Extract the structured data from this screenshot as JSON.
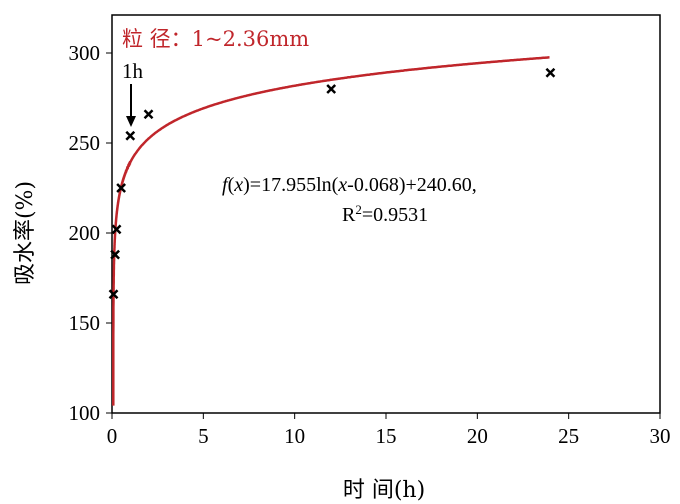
{
  "chart_data": {
    "type": "scatter",
    "xlabel": "时 间(h)",
    "ylabel": "吸水率(%)",
    "xlim": [
      0,
      30
    ],
    "ylim": [
      100,
      300
    ],
    "xticks": [
      0,
      5,
      10,
      15,
      20,
      25,
      30
    ],
    "yticks": [
      100,
      150,
      200,
      250,
      300
    ],
    "grid": false,
    "points": {
      "x": [
        0.083,
        0.17,
        0.25,
        0.5,
        1,
        2,
        12,
        24
      ],
      "y": [
        166,
        188,
        202,
        225,
        254,
        266,
        280,
        289
      ]
    },
    "fit": {
      "a": 17.955,
      "b": 0.068,
      "c": 240.6,
      "color": "#c0262b"
    },
    "legend_text": "粒 径：1~2.36mm",
    "annotation": "1h",
    "equation": "f(x)=17.955ln(x-0.068)+240.60,",
    "r2": "R2=0.9531"
  }
}
